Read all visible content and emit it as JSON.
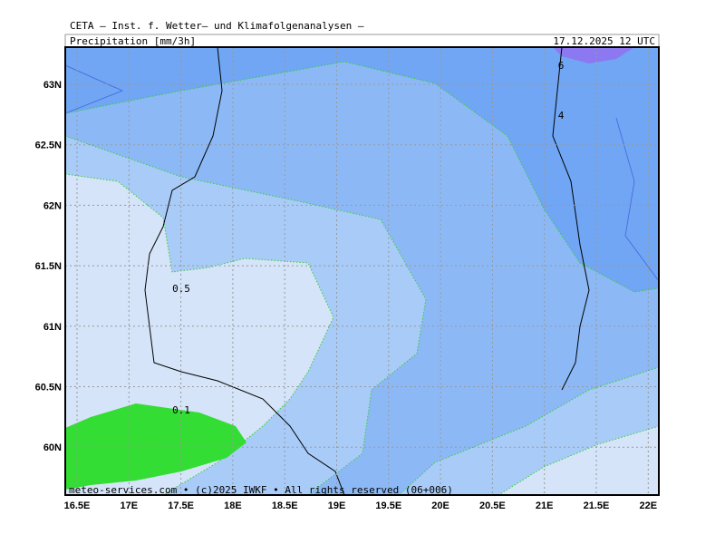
{
  "header": {
    "title": "CETA — Inst. f. Wetter— und Klimafolgenanalysen —",
    "variable": "Precipitation [mm/3h]",
    "time": "17.12.2025 12 UTC"
  },
  "map": {
    "lat_labels": [
      "63N",
      "62.5N",
      "62N",
      "61.5N",
      "61N",
      "60.5N",
      "60N"
    ],
    "lon_labels": [
      "16.5E",
      "17E",
      "17.5E",
      "18E",
      "18.5E",
      "19E",
      "19.5E",
      "20E",
      "20.5E",
      "21E",
      "21.5E",
      "22E"
    ],
    "contour_labels": [
      "6",
      "4",
      "0.5",
      "0.1"
    ],
    "footer": "meteo-services.com • (c)2025 IWKF • All rights reserved (06+006)"
  }
}
